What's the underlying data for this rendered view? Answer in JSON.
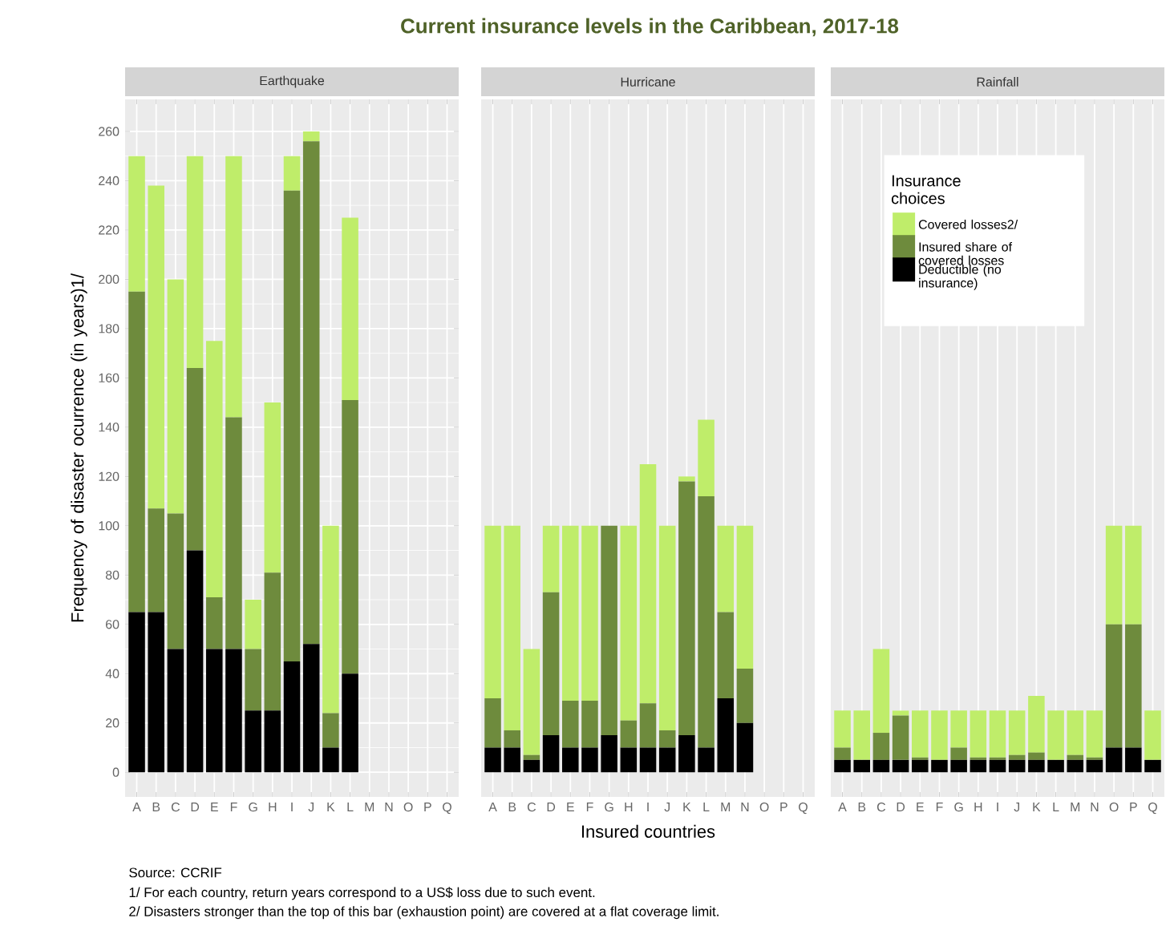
{
  "chart_data": [
    {
      "type": "bar",
      "stacked": true,
      "subtitle": "Earthquake",
      "ylabel": "Frequency of disaster ocurrence (in years)1/",
      "annotations": [
        "Source: CCRIF",
        "1/ For each country, return years correspond to a US$ loss due to such event.",
        "2/ Disasters stronger than the top of this bar (exhaustion point) are covered at a flat coverage limit."
      ],
      "grid": true,
      "ylim": [
        -10,
        273
      ],
      "yticks": [
        0,
        20,
        40,
        60,
        80,
        100,
        120,
        140,
        160,
        180,
        200,
        220,
        240,
        260
      ],
      "categories": [
        "A",
        "B",
        "C",
        "D",
        "E",
        "F",
        "G",
        "H",
        "I",
        "J",
        "K",
        "L",
        "M",
        "N",
        "O",
        "P",
        "Q"
      ],
      "series": [
        {
          "color": "#000000",
          "values": [
            65,
            65,
            50,
            90,
            50,
            50,
            25,
            25,
            45,
            52,
            10,
            40,
            null,
            null,
            null,
            null,
            null
          ]
        },
        {
          "color": "#6e8b3d",
          "values": [
            130,
            42,
            55,
            74,
            21,
            94,
            25,
            56,
            191,
            204,
            14,
            111,
            null,
            null,
            null,
            null,
            null
          ]
        },
        {
          "color": "#bfed6a",
          "values": [
            55,
            131,
            95,
            86,
            104,
            106,
            20,
            69,
            14,
            4,
            76,
            74,
            null,
            null,
            null,
            null,
            null
          ]
        }
      ]
    },
    {
      "type": "bar",
      "stacked": true,
      "title": "Current insurance levels in the Caribbean, 2017-18",
      "subtitle": "Hurricane",
      "xlabel": "Insured countries",
      "grid": true,
      "tick_labels": "x",
      "ylim": [
        -10,
        273
      ],
      "categories": [
        "A",
        "B",
        "C",
        "D",
        "E",
        "F",
        "G",
        "H",
        "I",
        "J",
        "K",
        "L",
        "M",
        "N",
        "O",
        "P",
        "Q"
      ],
      "series": [
        {
          "color": "#000000",
          "values": [
            10,
            10,
            5,
            15,
            10,
            10,
            15,
            10,
            10,
            10,
            15,
            10,
            30,
            20,
            null,
            null,
            null
          ]
        },
        {
          "color": "#6e8b3d",
          "values": [
            20,
            7,
            2,
            58,
            19,
            19,
            85,
            11,
            18,
            7,
            103,
            102,
            35,
            22,
            null,
            null,
            null
          ]
        },
        {
          "color": "#bfed6a",
          "values": [
            70,
            83,
            43,
            27,
            71,
            71,
            0,
            79,
            97,
            83,
            2,
            31,
            35,
            58,
            null,
            null,
            null
          ]
        }
      ]
    },
    {
      "type": "bar",
      "stacked": true,
      "subtitle": "Rainfall",
      "legend_title": "Insurance choices",
      "legend": "top",
      "grid": true,
      "tick_labels": "x",
      "ylim": [
        -10,
        273
      ],
      "categories": [
        "A",
        "B",
        "C",
        "D",
        "E",
        "F",
        "G",
        "H",
        "I",
        "J",
        "K",
        "L",
        "M",
        "N",
        "O",
        "P",
        "Q"
      ],
      "series": [
        {
          "name": "Deductible (no insurance)",
          "color": "#000000",
          "values": [
            5,
            5,
            5,
            5,
            5,
            5,
            5,
            5,
            5,
            5,
            5,
            5,
            5,
            5,
            10,
            10,
            5
          ]
        },
        {
          "name": "Insured share of covered losses",
          "color": "#6e8b3d",
          "values": [
            5,
            0,
            11,
            18,
            1,
            0,
            5,
            1,
            1,
            2,
            3,
            0,
            2,
            1,
            50,
            50,
            0
          ]
        },
        {
          "name": "Covered losses2/",
          "color": "#bfed6a",
          "values": [
            15,
            20,
            34,
            2,
            19,
            20,
            15,
            19,
            19,
            18,
            23,
            20,
            18,
            19,
            40,
            40,
            20
          ]
        }
      ]
    }
  ]
}
